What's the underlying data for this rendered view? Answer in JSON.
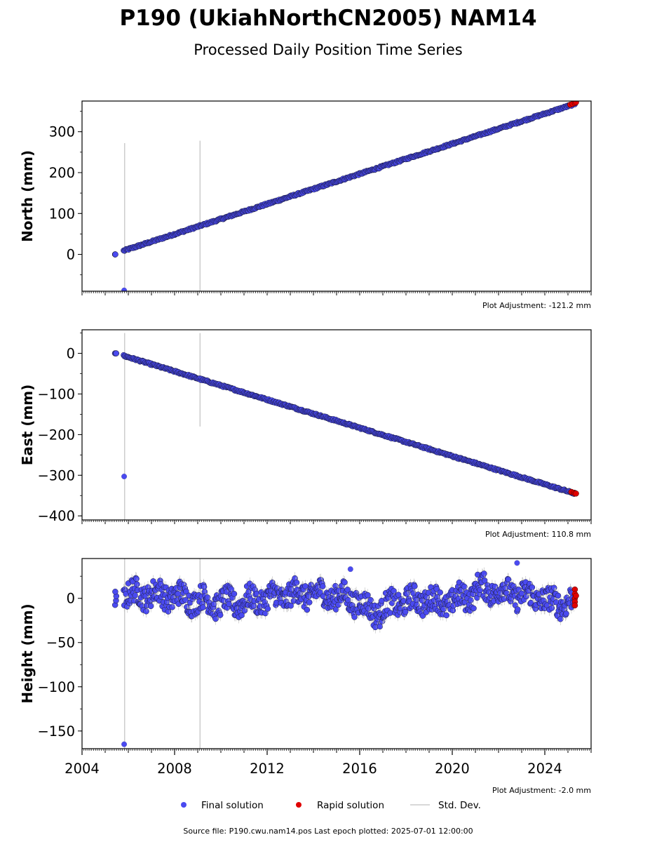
{
  "title": "P190 (UkiahNorthCN2005) NAM14",
  "subtitle": "Processed Daily Position Time Series",
  "footer": "Source file: P190.cwu.nam14.pos  Last epoch plotted: 2025-07-01 12:00:00",
  "legend": {
    "final": "Final solution",
    "rapid": "Rapid solution",
    "std": "Std. Dev."
  },
  "colors": {
    "final": "#4a4af0",
    "rapid": "#e00000",
    "std": "#cccccc",
    "edge": "#1a1a3a"
  },
  "chart_data": [
    {
      "type": "scatter",
      "ylabel": "North (mm)",
      "adjustment": "Plot Adjustment: -121.2 mm",
      "ylim": [
        -90,
        375
      ],
      "yticks": [
        0,
        100,
        200,
        300
      ],
      "ytick_labels": [
        "0",
        "100",
        "200",
        "300"
      ],
      "xlim": [
        2004,
        2026
      ],
      "grid": false,
      "start": [
        2005.45,
        0
      ],
      "trend": [
        [
          2005.8,
          9
        ],
        [
          2025.3,
          368
        ]
      ],
      "scatter_amp": 2,
      "outliers": [
        [
          2005.82,
          -88
        ]
      ],
      "vlines": [
        [
          2005.84,
          -90,
          272
        ],
        [
          2009.1,
          -90,
          278
        ]
      ],
      "rapid_points": [
        [
          2025.1,
          366
        ],
        [
          2025.2,
          368
        ],
        [
          2025.3,
          370
        ],
        [
          2025.35,
          372
        ]
      ]
    },
    {
      "type": "scatter",
      "ylabel": "East (mm)",
      "adjustment": "Plot Adjustment: 110.8 mm",
      "ylim": [
        -410,
        58
      ],
      "yticks": [
        0,
        -100,
        -200,
        -300,
        -400
      ],
      "ytick_labels": [
        "0",
        "−100",
        "−200",
        "−300",
        "−400"
      ],
      "xlim": [
        2004,
        2026
      ],
      "grid": false,
      "start": [
        2005.45,
        0
      ],
      "trend": [
        [
          2005.8,
          -6
        ],
        [
          2025.3,
          -345
        ]
      ],
      "scatter_amp": 2,
      "outliers": [
        [
          2005.82,
          -303
        ]
      ],
      "vlines": [
        [
          2005.84,
          -410,
          50
        ],
        [
          2009.1,
          -180,
          50
        ]
      ],
      "rapid_points": [
        [
          2025.15,
          -341
        ],
        [
          2025.25,
          -343
        ],
        [
          2025.3,
          -345
        ],
        [
          2025.35,
          -345
        ]
      ]
    },
    {
      "type": "scatter",
      "ylabel": "Height (mm)",
      "adjustment": "Plot Adjustment: -2.0 mm",
      "ylim": [
        -170,
        45
      ],
      "yticks": [
        0,
        -50,
        -100,
        -150
      ],
      "ytick_labels": [
        "0",
        "−50",
        "−100",
        "−150"
      ],
      "xlim": [
        2004,
        2026
      ],
      "xticks": [
        2004,
        2008,
        2012,
        2016,
        2020,
        2024
      ],
      "xtick_labels": [
        "2004",
        "2008",
        "2012",
        "2016",
        "2020",
        "2024"
      ],
      "grid": false,
      "start": [
        2005.45,
        0
      ],
      "trend": [
        [
          2005.8,
          0
        ],
        [
          2025.3,
          0
        ]
      ],
      "scatter_amp": 14,
      "outliers": [
        [
          2005.82,
          -165
        ],
        [
          2015.6,
          33
        ],
        [
          2022.8,
          40
        ]
      ],
      "vlines": [
        [
          2005.84,
          -170,
          45
        ],
        [
          2009.1,
          -170,
          45
        ]
      ],
      "rapid_points": [
        [
          2025.3,
          10
        ],
        [
          2025.3,
          5
        ],
        [
          2025.3,
          0
        ],
        [
          2025.3,
          -4
        ],
        [
          2025.3,
          -8
        ],
        [
          2025.35,
          3
        ]
      ]
    }
  ]
}
